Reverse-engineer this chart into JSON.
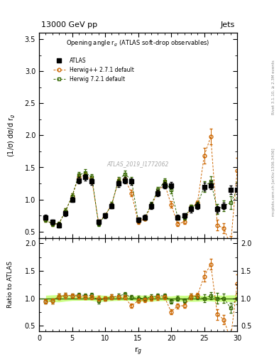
{
  "title_top": "13000 GeV pp",
  "title_right": "Jets",
  "plot_title": "Opening angle r$_g$ (ATLAS soft-drop observables)",
  "xlabel": "r$_g$",
  "ylabel_main": "(1/σ) dσ/d r$_g$",
  "ylabel_ratio": "Ratio to ATLAS",
  "watermark": "ATLAS_2019_I1772062",
  "right_label_top": "Rivet 3.1.10, ≥ 2.3M events",
  "right_label_bottom": "mcplots.cern.ch [arXiv:1306.3436]",
  "xlim": [
    0,
    30
  ],
  "ylim_main": [
    0.4,
    3.6
  ],
  "ylim_ratio": [
    0.4,
    2.1
  ],
  "x": [
    1,
    2,
    3,
    4,
    5,
    6,
    7,
    8,
    9,
    10,
    11,
    12,
    13,
    14,
    15,
    16,
    17,
    18,
    19,
    20,
    21,
    22,
    23,
    24,
    25,
    26,
    27,
    28,
    29,
    30
  ],
  "atlas_y": [
    0.72,
    0.65,
    0.6,
    0.78,
    1.0,
    1.3,
    1.35,
    1.28,
    0.65,
    0.75,
    0.9,
    1.25,
    1.3,
    1.28,
    0.68,
    0.72,
    0.9,
    1.1,
    1.22,
    1.22,
    0.72,
    0.75,
    0.85,
    0.9,
    1.2,
    1.22,
    0.85,
    0.9,
    1.15,
    1.15
  ],
  "atlas_yerr": [
    0.04,
    0.04,
    0.04,
    0.04,
    0.04,
    0.05,
    0.05,
    0.05,
    0.04,
    0.04,
    0.04,
    0.05,
    0.05,
    0.05,
    0.04,
    0.04,
    0.05,
    0.05,
    0.05,
    0.05,
    0.04,
    0.04,
    0.05,
    0.05,
    0.06,
    0.06,
    0.05,
    0.05,
    0.07,
    0.07
  ],
  "herwig_pp_y": [
    0.68,
    0.62,
    0.62,
    0.82,
    1.05,
    1.35,
    1.38,
    1.3,
    0.65,
    0.75,
    0.92,
    1.28,
    1.32,
    1.1,
    0.65,
    0.7,
    0.9,
    1.12,
    1.25,
    0.92,
    0.62,
    0.65,
    0.88,
    0.95,
    1.68,
    1.98,
    0.6,
    0.55,
    0.28,
    1.45
  ],
  "herwig_pp_yerr": [
    0.03,
    0.03,
    0.03,
    0.04,
    0.04,
    0.05,
    0.05,
    0.05,
    0.03,
    0.03,
    0.04,
    0.05,
    0.05,
    0.05,
    0.03,
    0.03,
    0.04,
    0.05,
    0.05,
    0.05,
    0.03,
    0.03,
    0.04,
    0.04,
    0.12,
    0.12,
    0.08,
    0.08,
    0.15,
    0.2
  ],
  "herwig7_y": [
    0.68,
    0.62,
    0.62,
    0.82,
    1.05,
    1.38,
    1.42,
    1.35,
    0.62,
    0.75,
    0.92,
    1.3,
    1.4,
    1.3,
    0.68,
    0.72,
    0.92,
    1.15,
    1.28,
    1.15,
    0.72,
    0.72,
    0.88,
    0.92,
    1.2,
    1.28,
    0.85,
    0.9,
    0.95,
    1.15
  ],
  "herwig7_yerr": [
    0.03,
    0.03,
    0.03,
    0.04,
    0.04,
    0.05,
    0.05,
    0.05,
    0.03,
    0.03,
    0.04,
    0.05,
    0.05,
    0.05,
    0.03,
    0.03,
    0.04,
    0.05,
    0.05,
    0.05,
    0.03,
    0.03,
    0.04,
    0.04,
    0.08,
    0.08,
    0.08,
    0.08,
    0.1,
    0.12
  ],
  "atlas_color": "#000000",
  "herwig_pp_color": "#cc6600",
  "herwig7_color": "#336600",
  "ratio_band_color": "#ccff88",
  "ratio_line_color": "#336600",
  "yticks_main": [
    0.5,
    1.0,
    1.5,
    2.0,
    2.5,
    3.0,
    3.5
  ],
  "yticks_ratio": [
    0.5,
    1.0,
    1.5,
    2.0
  ],
  "xticks": [
    0,
    5,
    10,
    15,
    20,
    25,
    30
  ]
}
